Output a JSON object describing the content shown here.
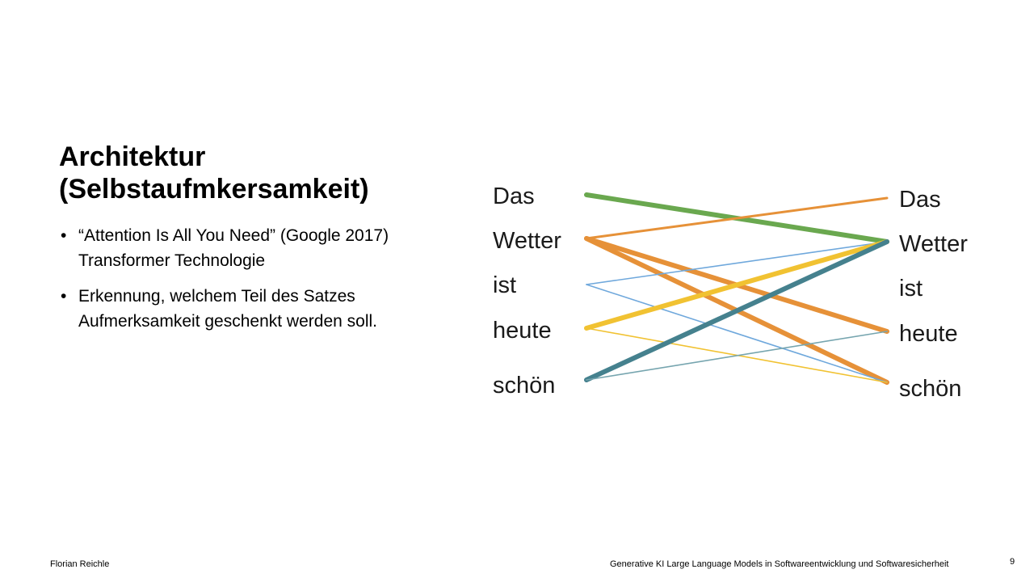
{
  "title": {
    "line1": "Architektur",
    "line2": "(Selbstaufmkersamkeit)"
  },
  "bullets": [
    {
      "line1": "“Attention Is All You Need” (Google 2017)",
      "line2": "Transformer Technologie"
    },
    {
      "line1": "Erkennung, welchem Teil des Satzes",
      "line2": "Aufmerksamkeit geschenkt werden soll."
    }
  ],
  "bullet_symbol": "•",
  "diagram": {
    "left_words": [
      "Das",
      "Wetter",
      "ist",
      "heute",
      "schön"
    ],
    "right_words": [
      "Das",
      "Wetter",
      "ist",
      "heute",
      "schön"
    ],
    "connections": [
      {
        "from": "Das",
        "to": "Wetter",
        "weight": "strong",
        "color": "#6aa84f"
      },
      {
        "from": "Wetter",
        "to": "Das",
        "weight": "medium",
        "color": "#e69138"
      },
      {
        "from": "Wetter",
        "to": "heute",
        "weight": "strong",
        "color": "#e69138"
      },
      {
        "from": "Wetter",
        "to": "schön",
        "weight": "strong",
        "color": "#e69138"
      },
      {
        "from": "ist",
        "to": "Wetter",
        "weight": "thin",
        "color": "#6fa8dc"
      },
      {
        "from": "ist",
        "to": "schön",
        "weight": "thin",
        "color": "#6fa8dc"
      },
      {
        "from": "heute",
        "to": "Wetter",
        "weight": "strong",
        "color": "#f1c232"
      },
      {
        "from": "heute",
        "to": "schön",
        "weight": "thin",
        "color": "#f1c232"
      },
      {
        "from": "schön",
        "to": "Wetter",
        "weight": "strong",
        "color": "#45818e"
      },
      {
        "from": "schön",
        "to": "heute",
        "weight": "thin",
        "color": "#76a5af"
      }
    ]
  },
  "footer": {
    "author": "Florian Reichle",
    "course": "Generative KI Large Language Models in Softwareentwicklung und Softwaresicherheit",
    "page": "9"
  }
}
